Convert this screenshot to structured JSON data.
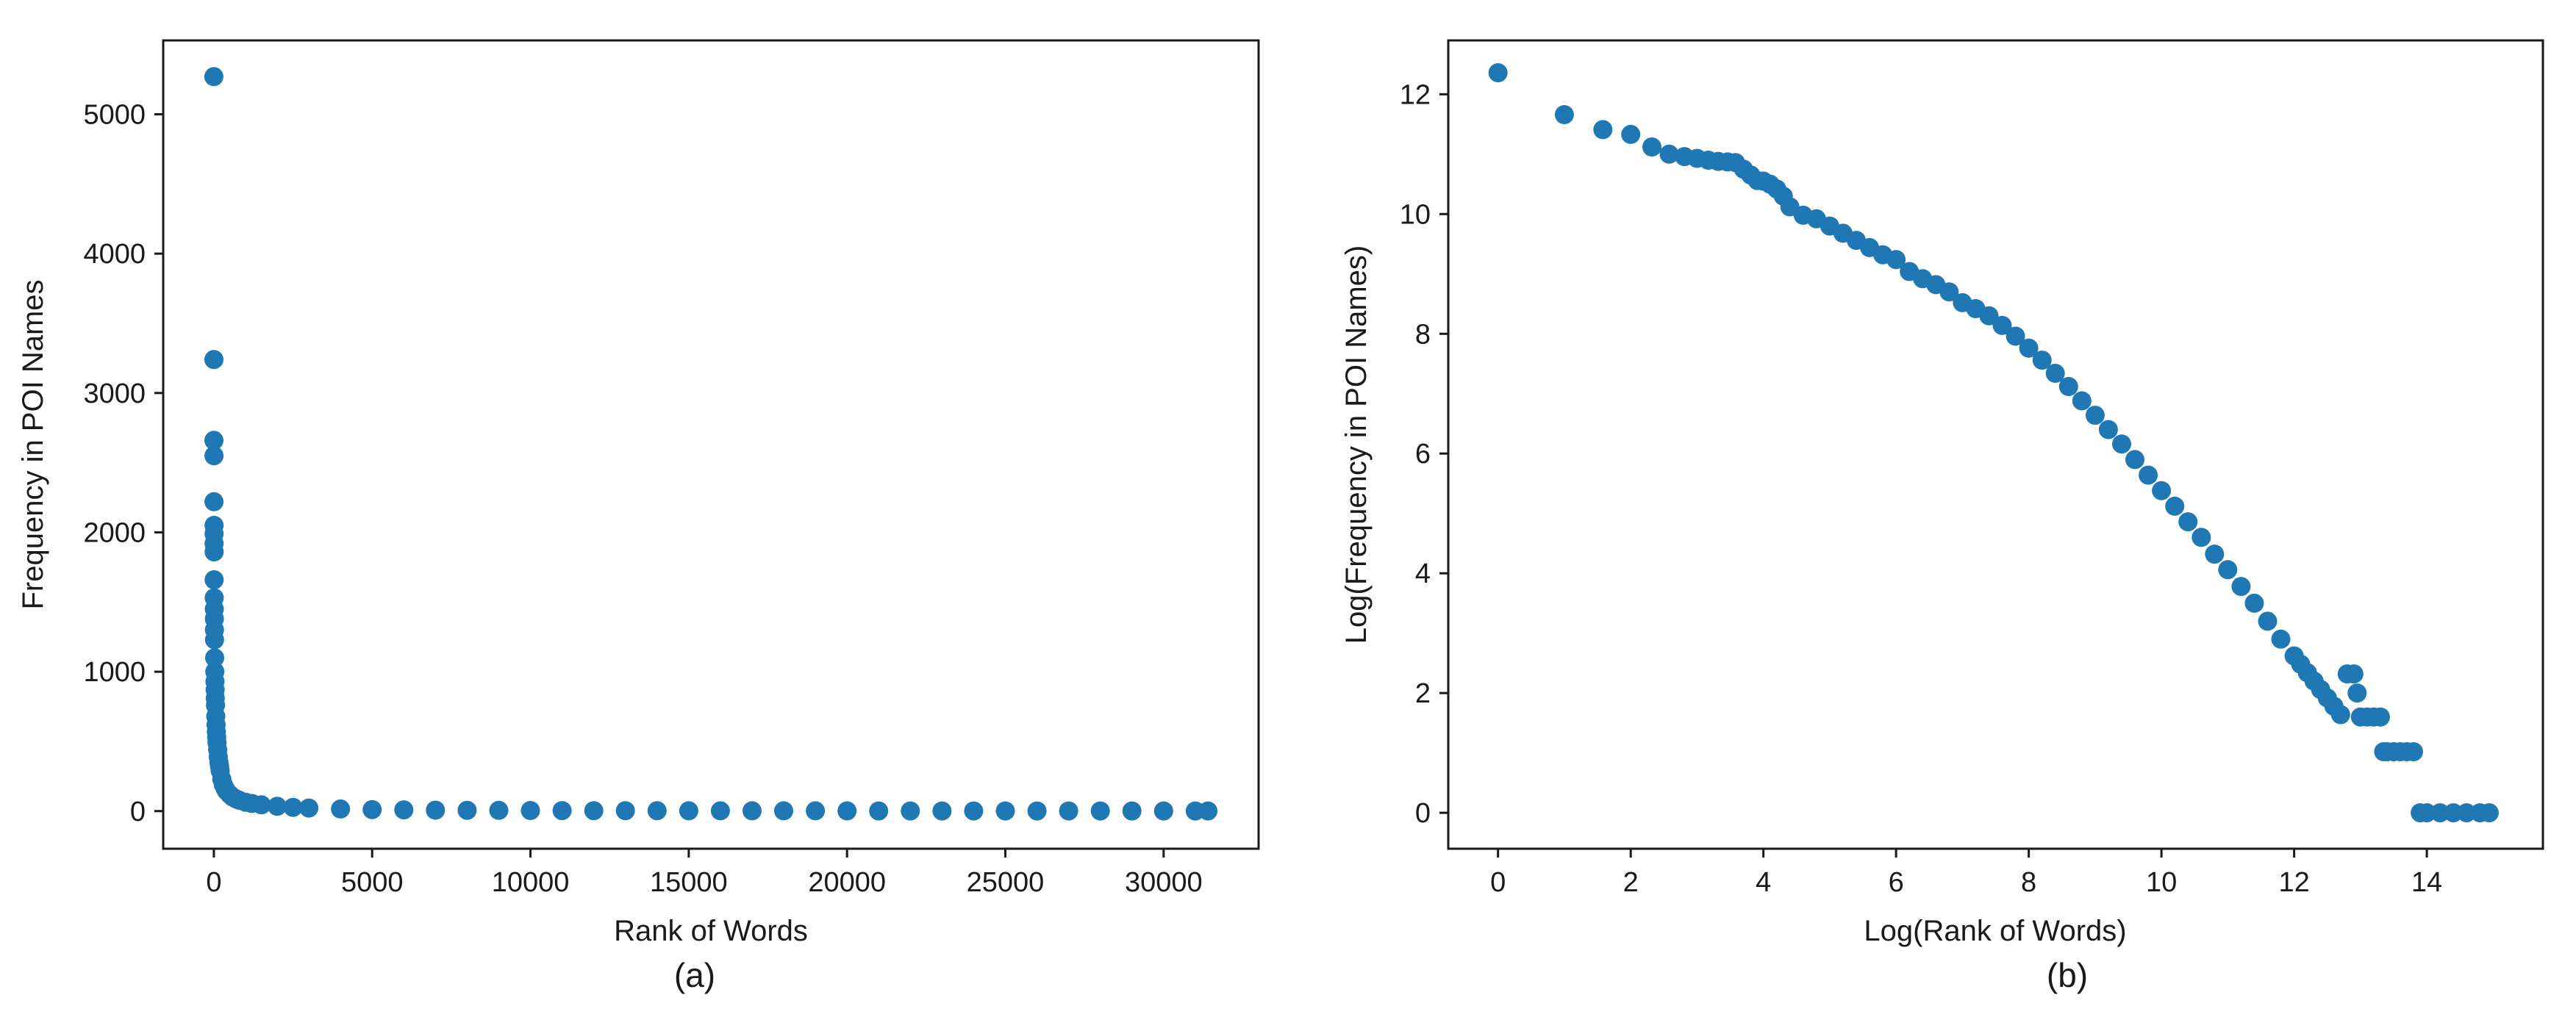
{
  "chart_data": [
    {
      "type": "scatter",
      "caption": "(a)",
      "xlabel": "Rank of Words",
      "ylabel": "Frequency in POI Names",
      "xlim": [
        -1600,
        33000
      ],
      "ylim": [
        -270,
        5530
      ],
      "xticks": [
        0,
        5000,
        10000,
        15000,
        20000,
        25000,
        30000
      ],
      "xtick_labels": [
        "0",
        "5000",
        "10000",
        "15000",
        "20000",
        "25000",
        "30000"
      ],
      "yticks": [
        0,
        1000,
        2000,
        3000,
        4000,
        5000
      ],
      "ytick_labels": [
        "0",
        "1000",
        "2000",
        "3000",
        "4000",
        "5000"
      ],
      "grid": false,
      "marker_color": "#1f77b4",
      "series": [
        {
          "x": [
            1,
            2,
            3,
            4,
            5,
            6,
            7,
            8,
            9,
            10,
            12,
            14,
            16,
            18,
            20,
            25,
            30,
            35,
            40,
            45,
            50,
            60,
            70,
            80,
            90,
            100,
            120,
            140,
            160,
            180,
            200,
            250,
            300,
            350,
            400,
            500,
            600,
            700,
            800,
            1000,
            1200,
            1500,
            2000,
            2500,
            3000,
            4000,
            5000,
            6000,
            7000,
            8000,
            9000,
            10000,
            11000,
            12000,
            13000,
            14000,
            15000,
            16000,
            17000,
            18000,
            19000,
            20000,
            21000,
            22000,
            23000,
            24000,
            25000,
            26000,
            27000,
            28000,
            29000,
            30000,
            31000,
            31400
          ],
          "y": [
            5270,
            3240,
            2660,
            2550,
            2220,
            2050,
            1990,
            1920,
            1860,
            1660,
            1530,
            1450,
            1380,
            1300,
            1230,
            1100,
            1000,
            930,
            870,
            810,
            760,
            680,
            620,
            570,
            530,
            490,
            440,
            390,
            350,
            320,
            290,
            230,
            190,
            165,
            145,
            120,
            100,
            88,
            78,
            64,
            55,
            45,
            34,
            27,
            22,
            15,
            11,
            9,
            7,
            6,
            5,
            4,
            3.5,
            3,
            3,
            2.5,
            2,
            2,
            2,
            2,
            2,
            1.5,
            1,
            1,
            1,
            1,
            1,
            1,
            1,
            1,
            1,
            1,
            1,
            1
          ]
        }
      ]
    },
    {
      "type": "scatter",
      "caption": "(b)",
      "xlabel": "Log(Rank of Words)",
      "ylabel": "Log(Frequency in POI Names)",
      "xlim": [
        -0.75,
        15.75
      ],
      "ylim": [
        -0.6,
        12.9
      ],
      "xticks": [
        0,
        2,
        4,
        6,
        8,
        10,
        12,
        14
      ],
      "xtick_labels": [
        "0",
        "2",
        "4",
        "6",
        "8",
        "10",
        "12",
        "14"
      ],
      "yticks": [
        0,
        2,
        4,
        6,
        8,
        10,
        12
      ],
      "ytick_labels": [
        "0",
        "2",
        "4",
        "6",
        "8",
        "10",
        "12"
      ],
      "grid": false,
      "marker_color": "#1f77b4",
      "series": [
        {
          "x": [
            0,
            1,
            1.58,
            2,
            2.32,
            2.58,
            2.81,
            3.0,
            3.17,
            3.32,
            3.46,
            3.58,
            3.7,
            3.81,
            3.91,
            4.0,
            4.1,
            4.2,
            4.3,
            4.4,
            4.6,
            4.8,
            5.0,
            5.2,
            5.4,
            5.6,
            5.8,
            6.0,
            6.2,
            6.4,
            6.6,
            6.8,
            7.0,
            7.2,
            7.4,
            7.6,
            7.8,
            8.0,
            8.2,
            8.4,
            8.6,
            8.8,
            9.0,
            9.2,
            9.4,
            9.6,
            9.8,
            10.0,
            10.2,
            10.4,
            10.6,
            10.8,
            11.0,
            11.2,
            11.4,
            11.6,
            11.8,
            12.0,
            12.1,
            12.2,
            12.3,
            12.4,
            12.5,
            12.6,
            12.7,
            12.8,
            12.9,
            12.95,
            13.0,
            13.1,
            13.2,
            13.3,
            13.35,
            13.4,
            13.5,
            13.6,
            13.7,
            13.8,
            13.9,
            14.0,
            14.2,
            14.4,
            14.6,
            14.8,
            14.94
          ],
          "y": [
            12.36,
            11.66,
            11.41,
            11.33,
            11.12,
            11.0,
            10.96,
            10.93,
            10.9,
            10.88,
            10.87,
            10.86,
            10.75,
            10.65,
            10.56,
            10.55,
            10.5,
            10.42,
            10.3,
            10.12,
            9.98,
            9.92,
            9.8,
            9.68,
            9.56,
            9.44,
            9.32,
            9.24,
            9.04,
            8.92,
            8.82,
            8.7,
            8.52,
            8.42,
            8.3,
            8.14,
            7.96,
            7.76,
            7.56,
            7.34,
            7.12,
            6.88,
            6.64,
            6.4,
            6.16,
            5.9,
            5.64,
            5.38,
            5.12,
            4.86,
            4.6,
            4.32,
            4.06,
            3.78,
            3.5,
            3.2,
            2.9,
            2.62,
            2.48,
            2.34,
            2.2,
            2.06,
            1.92,
            1.78,
            1.64,
            2.32,
            2.32,
            2.0,
            1.6,
            1.6,
            1.6,
            1.6,
            1.02,
            1.02,
            1.02,
            1.02,
            1.02,
            1.02,
            0,
            0,
            0,
            0,
            0,
            0,
            0
          ]
        }
      ]
    }
  ]
}
